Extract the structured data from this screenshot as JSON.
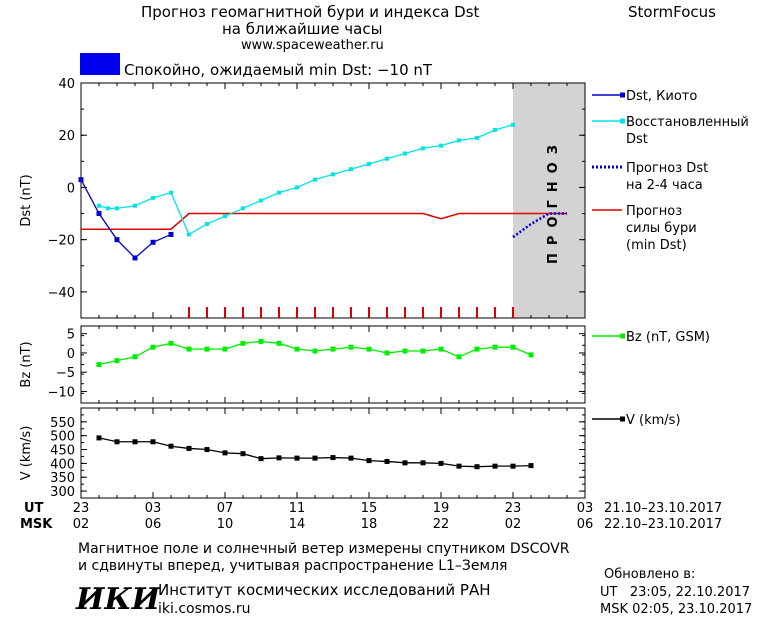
{
  "header": {
    "title_line1": "Прогноз геомагнитной бури и индекса Dst",
    "title_line2": "на ближайшие часы",
    "site": "www.spaceweather.ru",
    "brand": "StormFocus",
    "status": "Спокойно, ожидаемый min Dst: −10 nT",
    "status_color": "#0000ee"
  },
  "legend": {
    "dst_kyoto": "Dst, Киото",
    "restored_1": "Восстановленный",
    "restored_2": "Dst",
    "forecast_dst_1": "Прогноз Dst",
    "forecast_dst_2": "на 2-4 часа",
    "storm_1": "Прогноз",
    "storm_2": "силы бури",
    "storm_3": "(min Dst)",
    "bz": "Bz (nT, GSM)",
    "v": "V (km/s)"
  },
  "forecast_label": "ПРОГНОЗ",
  "time_axis": {
    "ut_label": "UT",
    "msk_label": "MSK",
    "ut_ticks": [
      "23",
      "03",
      "07",
      "11",
      "15",
      "19",
      "23",
      "03"
    ],
    "msk_ticks": [
      "02",
      "06",
      "10",
      "14",
      "18",
      "22",
      "02",
      "06"
    ],
    "ut_range": "21.10–23.10.2017",
    "msk_range": "22.10–23.10.2017"
  },
  "footer": {
    "note_1": "Магнитное поле и солнечный ветер измерены спутником DSCOVR",
    "note_2": "и сдвинуты вперед, учитывая распространение L1–Земля",
    "logo_text": "ИКИ",
    "institute": "Институт космических исследований РАН",
    "institute_url": "iki.cosmos.ru",
    "updated_label": "Обновлено в:",
    "updated_ut": "UT   23:05, 22.10.2017",
    "updated_msk": "MSK 02:05, 23.10.2017"
  },
  "colors": {
    "dst_kyoto": "#0000cc",
    "restored": "#00e5e5",
    "forecast_dst": "#0000cc",
    "storm": "#dd0000",
    "bz": "#00ee00",
    "v": "#000000",
    "forecast_zone": "#d3d3d3"
  },
  "chart_data": [
    {
      "type": "line",
      "ylabel": "Dst (nT)",
      "ylim": [
        -50,
        40
      ],
      "yticks": [
        "40",
        "20",
        "0",
        "−20",
        "−40"
      ],
      "x_unit": "hours from 23 UT",
      "xlim": [
        0,
        28
      ],
      "forecast_from": 24,
      "series": [
        {
          "name": "Dst, Киото",
          "x": [
            0,
            1,
            2,
            3,
            4,
            5
          ],
          "y": [
            3,
            -10,
            -20,
            -27,
            -21,
            -18
          ]
        },
        {
          "name": "Восстановленный Dst",
          "x": [
            1,
            1.5,
            2,
            3,
            4,
            5,
            6,
            7,
            8,
            9,
            10,
            11,
            12,
            13,
            14,
            15,
            16,
            17,
            18,
            19,
            20,
            21,
            22,
            23,
            24
          ],
          "y": [
            -7,
            -8,
            -8,
            -7,
            -4,
            -2,
            -18,
            -14,
            -11,
            -8,
            -5,
            -2,
            0,
            3,
            5,
            7,
            9,
            11,
            13,
            15,
            16,
            18,
            19,
            22,
            24
          ]
        },
        {
          "name": "Прогноз Dst на 2-4 часа",
          "x": [
            24,
            25,
            26,
            27
          ],
          "y": [
            -19,
            -14,
            -10,
            -10
          ]
        },
        {
          "name": "Прогноз силы бури (min Dst)",
          "x": [
            0,
            5,
            6,
            7,
            8,
            9,
            10,
            11,
            12,
            13,
            14,
            15,
            16,
            17,
            18,
            19,
            20,
            21,
            22,
            23,
            24,
            25,
            26,
            27
          ],
          "y": [
            -16,
            -16,
            -10,
            -10,
            -10,
            -10,
            -10,
            -10,
            -10,
            -10,
            -10,
            -10,
            -10,
            -10,
            -10,
            -10,
            -12,
            -10,
            -10,
            -10,
            -10,
            -10,
            -10,
            -10
          ]
        }
      ],
      "storm_ticks_x": [
        6,
        7,
        8,
        9,
        10,
        11,
        12,
        13,
        14,
        15,
        16,
        17,
        18,
        19,
        20,
        21,
        22,
        23,
        24
      ]
    },
    {
      "type": "line",
      "ylabel": "Bz (nT)",
      "ylim": [
        -13,
        7
      ],
      "yticks": [
        "5",
        "0",
        "−5",
        "−10"
      ],
      "series": [
        {
          "name": "Bz (nT, GSM)",
          "x": [
            1,
            2,
            3,
            4,
            5,
            6,
            7,
            8,
            9,
            10,
            11,
            12,
            13,
            14,
            15,
            16,
            17,
            18,
            19,
            20,
            21,
            22,
            23,
            24,
            25
          ],
          "y": [
            -3,
            -2,
            -1,
            1.5,
            2.5,
            1,
            1,
            1,
            2.5,
            3,
            2.5,
            1,
            0.5,
            1,
            1.5,
            1,
            0,
            0.5,
            0.5,
            1,
            -1,
            1,
            1.5,
            1.5,
            -0.5
          ]
        }
      ]
    },
    {
      "type": "line",
      "ylabel": "V (km/s)",
      "ylim": [
        275,
        600
      ],
      "yticks": [
        "550",
        "500",
        "450",
        "400",
        "350",
        "300"
      ],
      "series": [
        {
          "name": "V (km/s)",
          "x": [
            1,
            2,
            3,
            4,
            5,
            6,
            7,
            8,
            9,
            10,
            11,
            12,
            13,
            14,
            15,
            16,
            17,
            18,
            19,
            20,
            21,
            22,
            23,
            24,
            25
          ],
          "y": [
            492,
            478,
            478,
            478,
            462,
            454,
            450,
            438,
            435,
            417,
            420,
            419,
            419,
            421,
            419,
            410,
            407,
            402,
            402,
            400,
            390,
            388,
            390,
            390,
            392
          ]
        }
      ]
    }
  ]
}
